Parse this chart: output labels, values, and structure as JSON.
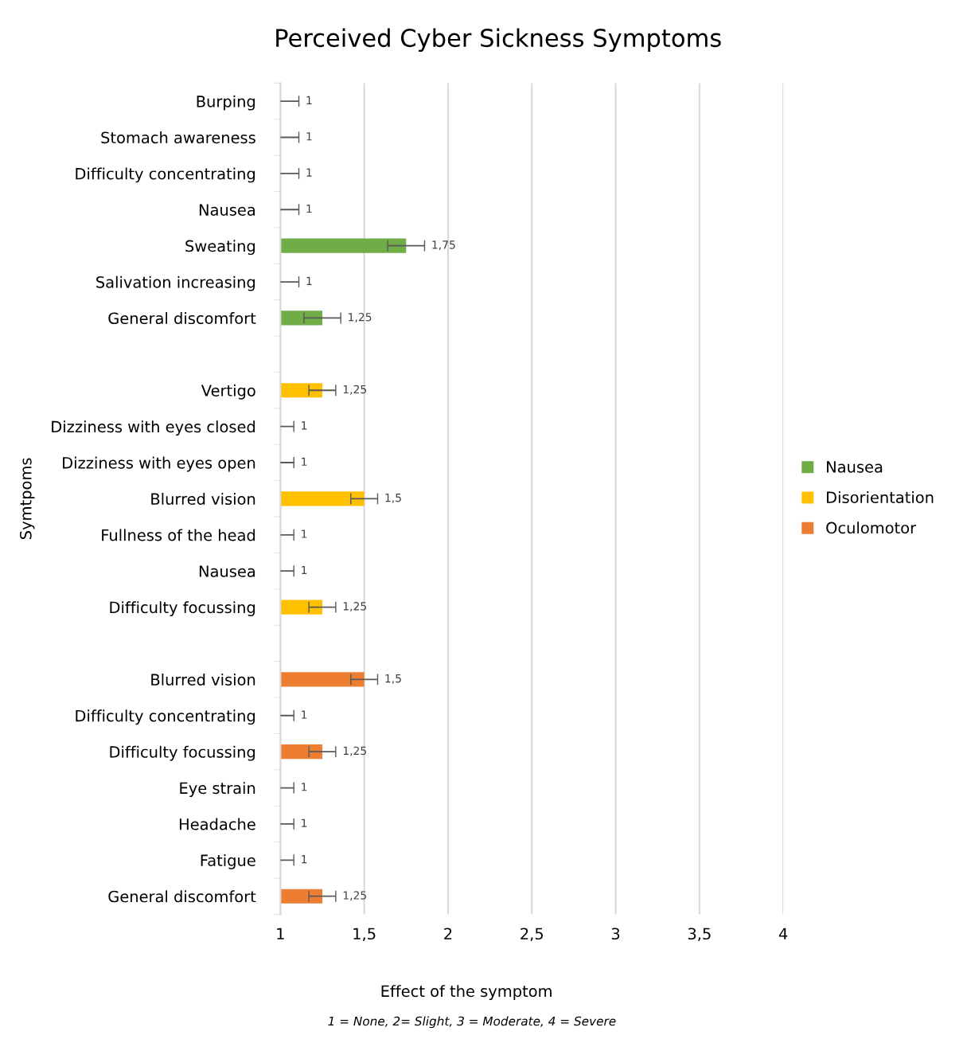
{
  "chart_data": {
    "type": "bar",
    "orientation": "horizontal",
    "title": "Perceived Cyber Sickness Symptoms",
    "xlabel": "Effect of the symptom",
    "ylabel": "Symtpoms",
    "annotations": [
      "1 = None, 2= Slight, 3 = Moderate, 4 = Severe"
    ],
    "categories": [
      "Burping",
      "Stomach awareness",
      "Difficulty concentrating",
      "Nausea",
      "Sweating",
      "Salivation increasing",
      "General discomfort",
      null,
      "Vertigo",
      "Dizziness with eyes closed",
      "Dizziness with eyes open",
      "Blurred vision",
      "Fullness of the head",
      "Nausea",
      "Difficulty focussing",
      null,
      "Blurred vision",
      "Difficulty concentrating",
      "Difficulty focussing",
      "Eye strain",
      "Headache",
      "Fatigue",
      "General discomfort"
    ],
    "series": [
      {
        "name": "Nausea",
        "color": "#70ad47",
        "values": [
          1,
          1,
          1,
          1,
          1.75,
          1,
          1.25,
          null,
          null,
          null,
          null,
          null,
          null,
          null,
          null,
          null,
          null,
          null,
          null,
          null,
          null,
          null,
          null
        ],
        "errors": [
          0.11,
          0.11,
          0.11,
          0.11,
          0.11,
          0.11,
          0.11,
          null,
          null,
          null,
          null,
          null,
          null,
          null,
          null,
          null,
          null,
          null,
          null,
          null,
          null,
          null,
          null
        ],
        "value_labels": [
          "1",
          "1",
          "1",
          "1",
          "1,75",
          "1",
          "1,25",
          null,
          null,
          null,
          null,
          null,
          null,
          null,
          null,
          null,
          null,
          null,
          null,
          null,
          null,
          null,
          null
        ]
      },
      {
        "name": "Disorientation",
        "color": "#ffc000",
        "values": [
          null,
          null,
          null,
          null,
          null,
          null,
          null,
          null,
          1.25,
          1,
          1,
          1.5,
          1,
          1,
          1.25,
          null,
          null,
          null,
          null,
          null,
          null,
          null,
          null
        ],
        "errors": [
          null,
          null,
          null,
          null,
          null,
          null,
          null,
          null,
          0.08,
          0.08,
          0.08,
          0.08,
          0.08,
          0.08,
          0.08,
          null,
          null,
          null,
          null,
          null,
          null,
          null,
          null
        ],
        "value_labels": [
          null,
          null,
          null,
          null,
          null,
          null,
          null,
          null,
          "1,25",
          "1",
          "1",
          "1,5",
          "1",
          "1",
          "1,25",
          null,
          null,
          null,
          null,
          null,
          null,
          null,
          null
        ]
      },
      {
        "name": "Oculomotor",
        "color": "#ed7d31",
        "values": [
          null,
          null,
          null,
          null,
          null,
          null,
          null,
          null,
          null,
          null,
          null,
          null,
          null,
          null,
          null,
          null,
          1.5,
          1,
          1.25,
          1,
          1,
          1,
          1.25
        ],
        "errors": [
          null,
          null,
          null,
          null,
          null,
          null,
          null,
          null,
          null,
          null,
          null,
          null,
          null,
          null,
          null,
          null,
          0.08,
          0.08,
          0.08,
          0.08,
          0.08,
          0.08,
          0.08
        ],
        "value_labels": [
          null,
          null,
          null,
          null,
          null,
          null,
          null,
          null,
          null,
          null,
          null,
          null,
          null,
          null,
          null,
          null,
          "1,5",
          "1",
          "1,25",
          "1",
          "1",
          "1",
          "1,25"
        ]
      }
    ],
    "xlim": [
      1,
      4
    ],
    "xticks": [
      1,
      {
        "value": 1.5,
        "label": "1,5"
      },
      2,
      {
        "value": 2.5,
        "label": "2,5"
      },
      3,
      {
        "value": 3.5,
        "label": "3,5"
      },
      4
    ],
    "grid": "x",
    "legend": "right"
  }
}
